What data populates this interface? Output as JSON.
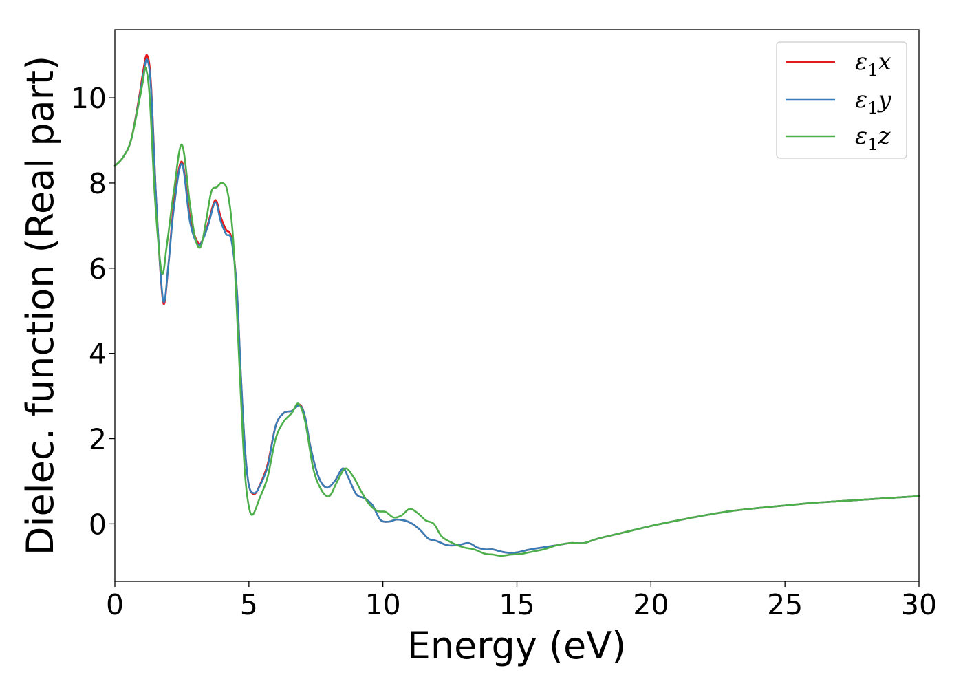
{
  "chart_data": {
    "type": "line",
    "title": "",
    "xlabel": "Energy (eV)",
    "ylabel": "Dielec. function (Real part)",
    "xlim": [
      0,
      30
    ],
    "ylim": [
      -1.35,
      11.6
    ],
    "xticks": [
      0,
      5,
      10,
      15,
      20,
      25,
      30
    ],
    "xtick_labels": [
      "0",
      "5",
      "10",
      "15",
      "20",
      "25",
      "30"
    ],
    "yticks": [
      0,
      2,
      4,
      6,
      8,
      10
    ],
    "ytick_labels": [
      "0",
      "2",
      "4",
      "6",
      "8",
      "10"
    ],
    "grid": false,
    "legend_position": "top-right",
    "series": [
      {
        "name": "ε₁x",
        "legend_base": "ε",
        "legend_sub": "1",
        "legend_var": "x",
        "color": "#e41a1c",
        "x": [
          0,
          0.3,
          0.6,
          0.9,
          1.05,
          1.2,
          1.35,
          1.55,
          1.8,
          2.0,
          2.2,
          2.5,
          2.8,
          3.1,
          3.3,
          3.5,
          3.75,
          3.95,
          4.15,
          4.35,
          4.55,
          4.7,
          4.85,
          5.0,
          5.2,
          5.4,
          5.7,
          6.0,
          6.3,
          6.6,
          6.9,
          7.1,
          7.3,
          7.6,
          7.9,
          8.2,
          8.5,
          8.7,
          9.0,
          9.3,
          9.6,
          9.9,
          10.2,
          10.5,
          10.8,
          11.1,
          11.4,
          11.7,
          12.0,
          12.4,
          12.8,
          13.2,
          13.5,
          13.8,
          14.1,
          14.4,
          14.7,
          15.0,
          15.5,
          16.0,
          16.5,
          17.0,
          17.5,
          18.0,
          19.0,
          20.0,
          21.0,
          22.0,
          23.0,
          24.0,
          25.0,
          26.0,
          27.0,
          28.0,
          29.0,
          30.0
        ],
        "y": [
          8.4,
          8.6,
          9.0,
          10.0,
          10.6,
          11.0,
          10.3,
          7.5,
          5.2,
          6.1,
          7.5,
          8.5,
          7.2,
          6.6,
          6.7,
          7.1,
          7.6,
          7.2,
          6.9,
          6.7,
          5.5,
          3.5,
          1.8,
          0.9,
          0.7,
          0.9,
          1.4,
          2.3,
          2.6,
          2.65,
          2.8,
          2.5,
          1.8,
          1.1,
          0.85,
          1.0,
          1.3,
          1.1,
          0.7,
          0.6,
          0.45,
          0.1,
          0.05,
          0.1,
          0.08,
          0.0,
          -0.15,
          -0.35,
          -0.4,
          -0.5,
          -0.5,
          -0.45,
          -0.55,
          -0.6,
          -0.6,
          -0.65,
          -0.68,
          -0.67,
          -0.6,
          -0.55,
          -0.5,
          -0.45,
          -0.45,
          -0.35,
          -0.2,
          -0.05,
          0.08,
          0.2,
          0.3,
          0.37,
          0.43,
          0.49,
          0.53,
          0.57,
          0.61,
          0.65
        ]
      },
      {
        "name": "ε₁y",
        "legend_base": "ε",
        "legend_sub": "1",
        "legend_var": "y",
        "color": "#377eb8",
        "x": [
          0,
          0.3,
          0.6,
          0.9,
          1.05,
          1.2,
          1.35,
          1.55,
          1.8,
          2.0,
          2.2,
          2.5,
          2.8,
          3.1,
          3.3,
          3.5,
          3.75,
          3.95,
          4.15,
          4.35,
          4.55,
          4.7,
          4.85,
          5.0,
          5.2,
          5.4,
          5.7,
          6.0,
          6.3,
          6.6,
          6.9,
          7.1,
          7.3,
          7.6,
          7.9,
          8.2,
          8.5,
          8.7,
          9.0,
          9.3,
          9.6,
          9.9,
          10.2,
          10.5,
          10.8,
          11.1,
          11.4,
          11.7,
          12.0,
          12.4,
          12.8,
          13.2,
          13.5,
          13.8,
          14.1,
          14.4,
          14.7,
          15.0,
          15.5,
          16.0,
          16.5,
          17.0,
          17.5,
          18.0,
          19.0,
          20.0,
          21.0,
          22.0,
          23.0,
          24.0,
          25.0,
          26.0,
          27.0,
          28.0,
          29.0,
          30.0
        ],
        "y": [
          8.4,
          8.6,
          9.0,
          9.95,
          10.5,
          10.9,
          10.2,
          7.5,
          5.25,
          6.1,
          7.4,
          8.45,
          7.1,
          6.55,
          6.7,
          7.05,
          7.55,
          7.1,
          6.8,
          6.65,
          5.5,
          3.5,
          1.8,
          0.9,
          0.72,
          0.88,
          1.35,
          2.3,
          2.6,
          2.65,
          2.78,
          2.5,
          1.8,
          1.1,
          0.85,
          1.0,
          1.3,
          1.1,
          0.7,
          0.6,
          0.45,
          0.1,
          0.05,
          0.1,
          0.08,
          0.0,
          -0.15,
          -0.35,
          -0.4,
          -0.5,
          -0.5,
          -0.45,
          -0.55,
          -0.6,
          -0.6,
          -0.65,
          -0.68,
          -0.67,
          -0.6,
          -0.55,
          -0.5,
          -0.45,
          -0.45,
          -0.35,
          -0.2,
          -0.05,
          0.08,
          0.2,
          0.3,
          0.37,
          0.43,
          0.49,
          0.53,
          0.57,
          0.61,
          0.65
        ]
      },
      {
        "name": "ε₁z",
        "legend_base": "ε",
        "legend_sub": "1",
        "legend_var": "z",
        "color": "#4daf4a",
        "x": [
          0,
          0.3,
          0.6,
          0.9,
          1.05,
          1.15,
          1.3,
          1.5,
          1.75,
          1.95,
          2.2,
          2.5,
          2.8,
          3.0,
          3.2,
          3.4,
          3.6,
          3.8,
          4.0,
          4.2,
          4.4,
          4.55,
          4.7,
          4.85,
          5.0,
          5.15,
          5.4,
          5.7,
          6.0,
          6.3,
          6.6,
          6.85,
          7.1,
          7.4,
          7.7,
          8.0,
          8.3,
          8.6,
          8.9,
          9.2,
          9.5,
          9.8,
          10.1,
          10.4,
          10.7,
          11.0,
          11.3,
          11.6,
          11.9,
          12.2,
          12.6,
          13.0,
          13.4,
          13.8,
          14.1,
          14.4,
          14.8,
          15.2,
          15.6,
          16.0,
          16.5,
          17.0,
          17.5,
          18.0,
          19.0,
          20.0,
          21.0,
          22.0,
          23.0,
          24.0,
          25.0,
          26.0,
          27.0,
          28.0,
          29.0,
          30.0
        ],
        "y": [
          8.4,
          8.6,
          9.0,
          9.9,
          10.4,
          10.7,
          10.0,
          7.6,
          5.9,
          6.6,
          7.8,
          8.9,
          7.5,
          6.7,
          6.5,
          7.1,
          7.8,
          7.9,
          8.0,
          7.8,
          6.8,
          5.0,
          3.0,
          1.2,
          0.4,
          0.22,
          0.6,
          1.1,
          2.0,
          2.4,
          2.6,
          2.82,
          2.4,
          1.3,
          0.8,
          0.65,
          1.0,
          1.3,
          1.1,
          0.75,
          0.45,
          0.3,
          0.28,
          0.15,
          0.2,
          0.35,
          0.25,
          0.08,
          0.0,
          -0.3,
          -0.45,
          -0.55,
          -0.6,
          -0.7,
          -0.72,
          -0.75,
          -0.72,
          -0.7,
          -0.65,
          -0.6,
          -0.5,
          -0.45,
          -0.45,
          -0.35,
          -0.2,
          -0.05,
          0.08,
          0.2,
          0.3,
          0.37,
          0.43,
          0.49,
          0.53,
          0.57,
          0.61,
          0.65
        ]
      }
    ]
  }
}
